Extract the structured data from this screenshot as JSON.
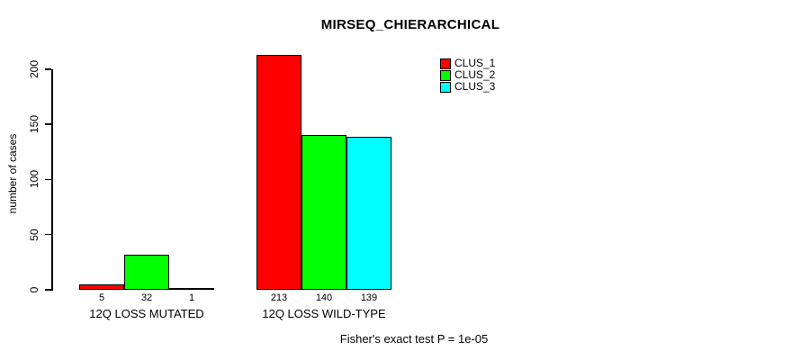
{
  "chart_data": {
    "type": "bar",
    "title": "MIRSEQ_CHIERARCHICAL",
    "ylabel": "number of cases",
    "xlabel": "",
    "categories": [
      "12Q LOSS MUTATED",
      "12Q LOSS WILD-TYPE"
    ],
    "series": [
      {
        "name": "CLUS_1",
        "color": "#ff0000",
        "values": [
          5,
          213
        ]
      },
      {
        "name": "CLUS_2",
        "color": "#00ff00",
        "values": [
          32,
          140
        ]
      },
      {
        "name": "CLUS_3",
        "color": "#00ffff",
        "values": [
          1,
          139
        ]
      }
    ],
    "yticks": [
      0,
      50,
      100,
      150,
      200
    ],
    "ylim": [
      0,
      200
    ],
    "grid": false,
    "legend_position": "top-right",
    "annotation": "Fisher's exact test P = 1e-05"
  }
}
